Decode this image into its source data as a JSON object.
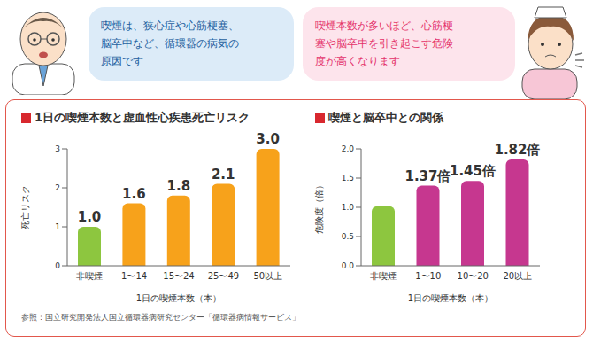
{
  "bubbles": [
    {
      "lines": [
        "喫煙は、狭心症や心筋梗塞、",
        "脳卒中など、循環器の病気の",
        "原因です"
      ]
    },
    {
      "lines": [
        "喫煙本数が多いほど、心筋梗",
        "塞や脳卒中を引き起こす危険",
        "度が高くなります"
      ]
    }
  ],
  "chart_data": [
    {
      "type": "bar",
      "title": "1日の喫煙本数と虚血性心疾患死亡リスク",
      "x_label": "1日の喫煙本数（本）",
      "y_label": "死亡リスク",
      "categories": [
        "非喫煙",
        "1〜14",
        "15〜24",
        "25〜49",
        "50以上"
      ],
      "values": [
        1.0,
        1.6,
        1.8,
        2.1,
        3.0
      ],
      "value_labels": [
        "1.0",
        "1.6",
        "1.8",
        "2.1",
        "3.0"
      ],
      "colors": [
        "#8dc63f",
        "#f7a21b",
        "#f7a21b",
        "#f7a21b",
        "#f7a21b"
      ],
      "ylim": [
        0,
        3
      ],
      "yticks": [
        0,
        1,
        2,
        3
      ],
      "data_labels": true,
      "grid": false
    },
    {
      "type": "bar",
      "title": "喫煙と脳卒中との関係",
      "x_label": "1日の喫煙本数（本）",
      "y_label": "危険度（倍）",
      "categories": [
        "非喫煙",
        "1〜10",
        "10〜20",
        "20以上"
      ],
      "values": [
        1.02,
        1.37,
        1.45,
        1.82
      ],
      "value_labels": [
        null,
        "1.37倍",
        "1.45倍",
        "1.82倍"
      ],
      "colors": [
        "#8dc63f",
        "#c6378f",
        "#c6378f",
        "#c6378f"
      ],
      "ylim": [
        0,
        2
      ],
      "yticks": [
        {
          "value": 0,
          "label": "0.0"
        },
        {
          "value": 0.5,
          "label": "0.5"
        },
        {
          "value": 1,
          "label": "1.0"
        },
        {
          "value": 1.5,
          "label": "1.5"
        },
        {
          "value": 2,
          "label": "2.0"
        }
      ],
      "data_labels": true,
      "grid": false
    }
  ],
  "source": "参照：国立研究開発法人国立循環器病研究センター「循環器病情報サービス」"
}
